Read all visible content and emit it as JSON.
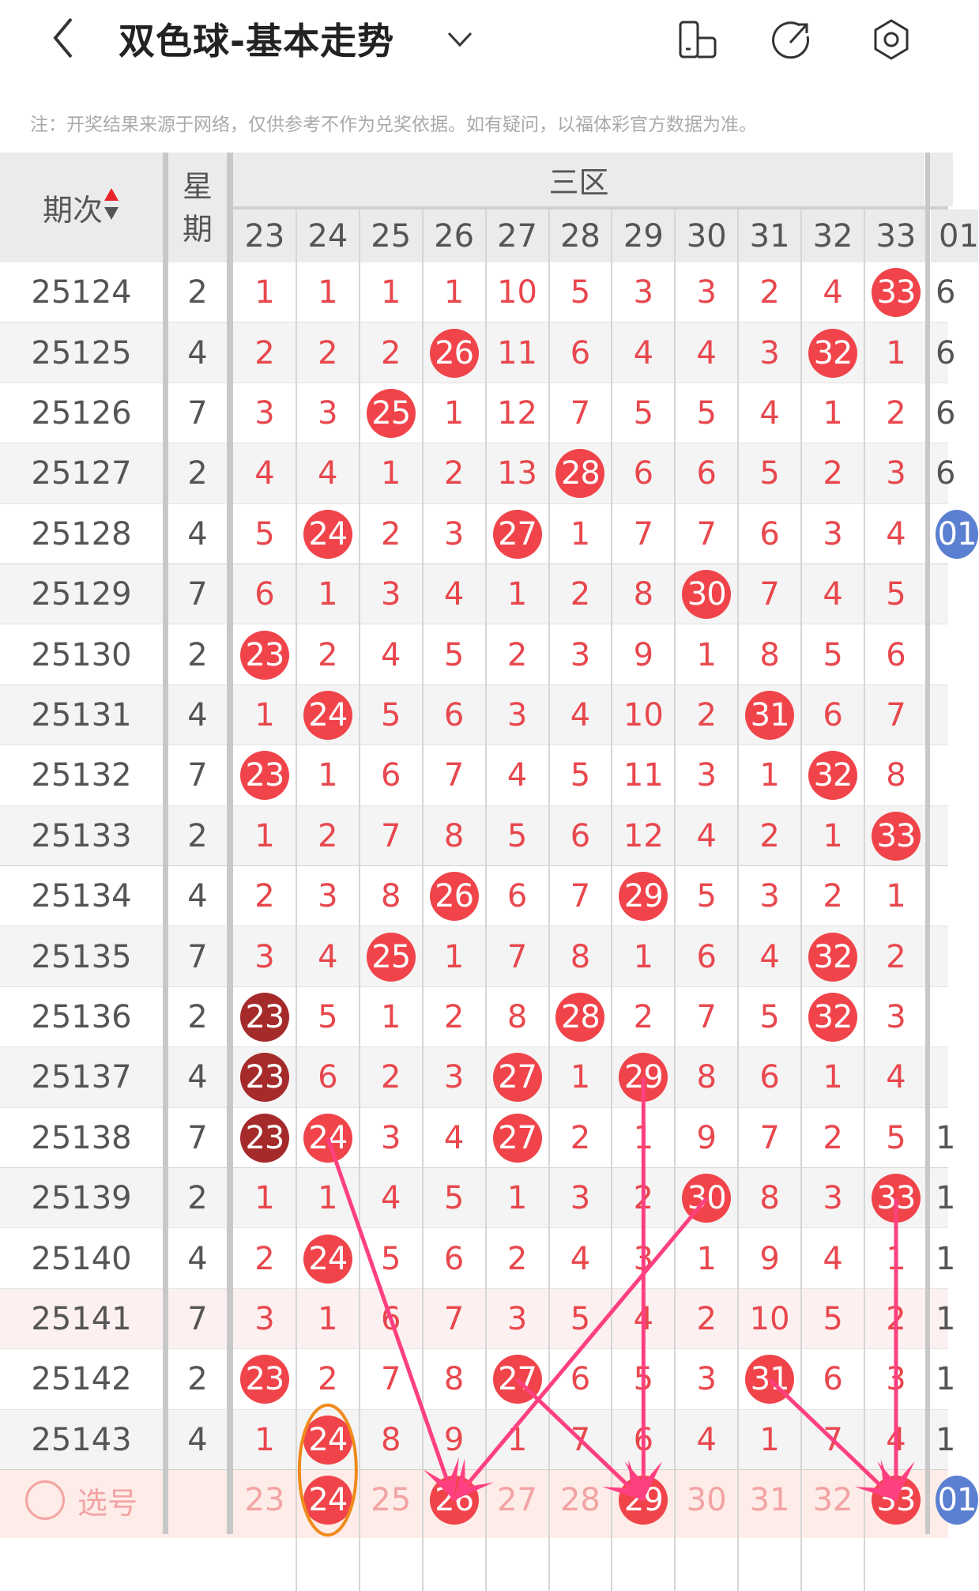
{
  "header": {
    "title": "双色球-基本走势",
    "back_icon": "chevron-left-icon",
    "dropdown_icon": "chevron-down-icon",
    "icons": [
      "phone-layout-icon",
      "share-icon",
      "settings-icon"
    ]
  },
  "note": "注：开奖结果来源于网络，仅供参考不作为兑奖依据。如有疑问，以福体彩官方数据为准。",
  "table": {
    "period_header": "期次",
    "week_header": [
      "星",
      "期"
    ],
    "zone_header": "三区",
    "columns": [
      "23",
      "24",
      "25",
      "26",
      "27",
      "28",
      "29",
      "30",
      "31",
      "32",
      "33"
    ],
    "partial_column_header": "01",
    "colors": {
      "ball": "#f0444a",
      "ball_repeat": "#a52a2a",
      "blue_ball": "#5b7fd1",
      "number": "#e8474d",
      "arrow": "#ff4080",
      "circle": "#f08a1c"
    },
    "rows": [
      {
        "period": "25124",
        "week": "2",
        "cells": [
          "1",
          "1",
          "1",
          "1",
          "10",
          "5",
          "3",
          "3",
          "2",
          "4",
          "33"
        ],
        "dark": [],
        "partial": "6"
      },
      {
        "period": "25125",
        "week": "4",
        "cells": [
          "2",
          "2",
          "2",
          "26",
          "11",
          "6",
          "4",
          "4",
          "3",
          "32",
          "1"
        ],
        "dark": [],
        "partial": "6"
      },
      {
        "period": "25126",
        "week": "7",
        "cells": [
          "3",
          "3",
          "25",
          "1",
          "12",
          "7",
          "5",
          "5",
          "4",
          "1",
          "2"
        ],
        "dark": [],
        "partial": "6"
      },
      {
        "period": "25127",
        "week": "2",
        "cells": [
          "4",
          "4",
          "1",
          "2",
          "13",
          "28",
          "6",
          "6",
          "5",
          "2",
          "3"
        ],
        "dark": [],
        "partial": "6"
      },
      {
        "period": "25128",
        "week": "4",
        "cells": [
          "5",
          "24",
          "2",
          "3",
          "27",
          "1",
          "7",
          "7",
          "6",
          "3",
          "4"
        ],
        "dark": [],
        "partial": "01",
        "partial_ball": true
      },
      {
        "period": "25129",
        "week": "7",
        "cells": [
          "6",
          "1",
          "3",
          "4",
          "1",
          "2",
          "8",
          "30",
          "7",
          "4",
          "5"
        ],
        "dark": []
      },
      {
        "period": "25130",
        "week": "2",
        "cells": [
          "23",
          "2",
          "4",
          "5",
          "2",
          "3",
          "9",
          "1",
          "8",
          "5",
          "6"
        ],
        "dark": []
      },
      {
        "period": "25131",
        "week": "4",
        "cells": [
          "1",
          "24",
          "5",
          "6",
          "3",
          "4",
          "10",
          "2",
          "31",
          "6",
          "7"
        ],
        "dark": []
      },
      {
        "period": "25132",
        "week": "7",
        "cells": [
          "23",
          "1",
          "6",
          "7",
          "4",
          "5",
          "11",
          "3",
          "1",
          "32",
          "8"
        ],
        "dark": []
      },
      {
        "period": "25133",
        "week": "2",
        "cells": [
          "1",
          "2",
          "7",
          "8",
          "5",
          "6",
          "12",
          "4",
          "2",
          "1",
          "33"
        ],
        "dark": []
      },
      {
        "period": "25134",
        "week": "4",
        "cells": [
          "2",
          "3",
          "8",
          "26",
          "6",
          "7",
          "29",
          "5",
          "3",
          "2",
          "1"
        ],
        "dark": []
      },
      {
        "period": "25135",
        "week": "7",
        "cells": [
          "3",
          "4",
          "25",
          "1",
          "7",
          "8",
          "1",
          "6",
          "4",
          "32",
          "2"
        ],
        "dark": []
      },
      {
        "period": "25136",
        "week": "2",
        "cells": [
          "23",
          "5",
          "1",
          "2",
          "8",
          "28",
          "2",
          "7",
          "5",
          "32",
          "3"
        ],
        "dark": [
          0
        ]
      },
      {
        "period": "25137",
        "week": "4",
        "cells": [
          "23",
          "6",
          "2",
          "3",
          "27",
          "1",
          "29",
          "8",
          "6",
          "1",
          "4"
        ],
        "dark": [
          0
        ]
      },
      {
        "period": "25138",
        "week": "7",
        "cells": [
          "23",
          "24",
          "3",
          "4",
          "27",
          "2",
          "1",
          "9",
          "7",
          "2",
          "5"
        ],
        "dark": [
          0
        ],
        "partial": "1"
      },
      {
        "period": "25139",
        "week": "2",
        "cells": [
          "1",
          "1",
          "4",
          "5",
          "1",
          "3",
          "2",
          "30",
          "8",
          "3",
          "33"
        ],
        "dark": [],
        "partial": "1"
      },
      {
        "period": "25140",
        "week": "4",
        "cells": [
          "2",
          "24",
          "5",
          "6",
          "2",
          "4",
          "3",
          "1",
          "9",
          "4",
          "1"
        ],
        "dark": [],
        "partial": "1"
      },
      {
        "period": "25141",
        "week": "7",
        "cells": [
          "3",
          "1",
          "6",
          "7",
          "3",
          "5",
          "4",
          "2",
          "10",
          "5",
          "2"
        ],
        "dark": [],
        "partial": "1",
        "highlight": true
      },
      {
        "period": "25142",
        "week": "2",
        "cells": [
          "23",
          "2",
          "7",
          "8",
          "27",
          "6",
          "5",
          "3",
          "31",
          "6",
          "3"
        ],
        "dark": [],
        "partial": "1"
      },
      {
        "period": "25143",
        "week": "4",
        "cells": [
          "1",
          "24",
          "8",
          "9",
          "1",
          "7",
          "6",
          "4",
          "1",
          "7",
          "4"
        ],
        "dark": [],
        "partial": "1"
      }
    ],
    "select_row": {
      "label": "选号",
      "cells": [
        "23",
        "24",
        "25",
        "26",
        "27",
        "28",
        "29",
        "30",
        "31",
        "32",
        "33"
      ],
      "selected": [
        "24",
        "26",
        "29",
        "33"
      ],
      "partial": "01"
    },
    "arrows": [
      {
        "from_period": "25138",
        "from": "24",
        "to": "26"
      },
      {
        "from_period": "25139",
        "from": "30",
        "to": "26"
      },
      {
        "from_period": "25137",
        "from": "29",
        "to": "29"
      },
      {
        "from_period": "25142",
        "from": "27",
        "to": "29"
      },
      {
        "from_period": "25142",
        "from": "31",
        "to": "33"
      },
      {
        "from_period": "25139",
        "from": "33",
        "to": "33"
      }
    ],
    "circled": {
      "from_period": "25143",
      "number": "24"
    }
  }
}
